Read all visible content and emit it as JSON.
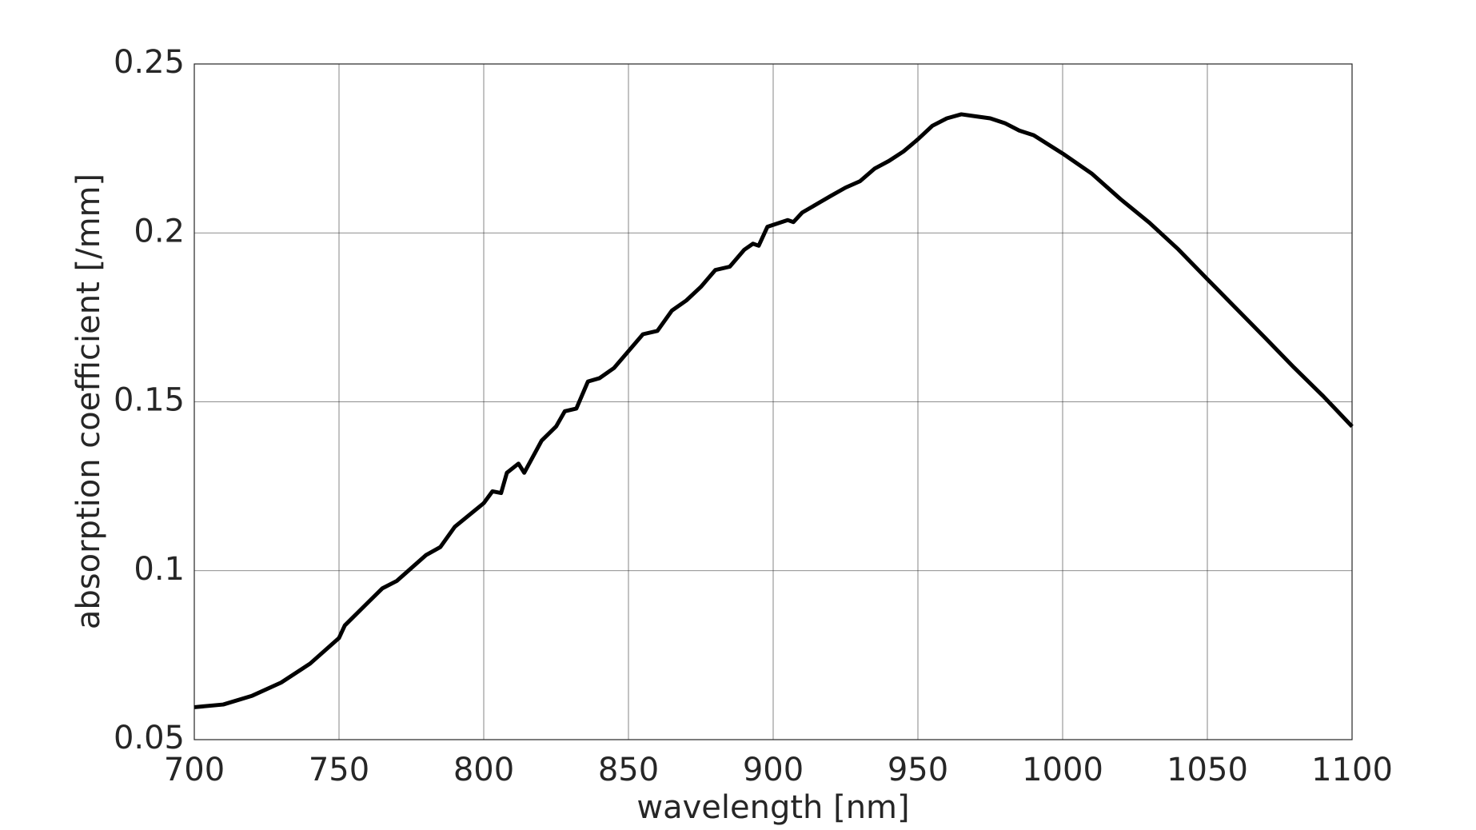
{
  "chart_data": {
    "type": "line",
    "xlabel": "wavelength [nm]",
    "ylabel": "absorption coefficient [/mm]",
    "x": [
      700,
      710,
      720,
      730,
      740,
      750,
      752,
      760,
      765,
      770,
      780,
      785,
      790,
      800,
      803,
      806,
      808,
      812,
      814,
      820,
      825,
      828,
      832,
      836,
      840,
      845,
      850,
      855,
      860,
      865,
      870,
      875,
      880,
      885,
      890,
      893,
      895,
      898,
      905,
      907,
      910,
      920,
      925,
      930,
      935,
      940,
      945,
      950,
      955,
      960,
      965,
      970,
      975,
      980,
      985,
      990,
      1000,
      1010,
      1020,
      1030,
      1040,
      1050,
      1060,
      1070,
      1080,
      1090,
      1100
    ],
    "series": [
      {
        "color": "#000000",
        "values": [
          0.0596,
          0.0604,
          0.063,
          0.0669,
          0.0725,
          0.0801,
          0.0838,
          0.0906,
          0.0948,
          0.097,
          0.1046,
          0.107,
          0.113,
          0.12,
          0.1235,
          0.123,
          0.129,
          0.1317,
          0.129,
          0.1385,
          0.1427,
          0.1472,
          0.148,
          0.156,
          0.157,
          0.16,
          0.165,
          0.17,
          0.171,
          0.177,
          0.18,
          0.184,
          0.189,
          0.19,
          0.195,
          0.1968,
          0.1962,
          0.2018,
          0.2038,
          0.2032,
          0.206,
          0.211,
          0.2134,
          0.2153,
          0.219,
          0.2213,
          0.2241,
          0.2277,
          0.2317,
          0.2339,
          0.2351,
          0.2345,
          0.2339,
          0.2325,
          0.2303,
          0.2289,
          0.2235,
          0.2176,
          0.21,
          0.203,
          0.1951,
          0.1863,
          0.1776,
          0.1689,
          0.1601,
          0.1517,
          0.1427
        ]
      }
    ],
    "xlim": [
      700,
      1100
    ],
    "xticks": [
      700,
      750,
      800,
      850,
      900,
      950,
      1000,
      1050,
      1100
    ],
    "ylim": [
      0.05,
      0.25
    ],
    "yticks": [
      0.05,
      0.1,
      0.15,
      0.2,
      0.25
    ],
    "grid": true
  }
}
